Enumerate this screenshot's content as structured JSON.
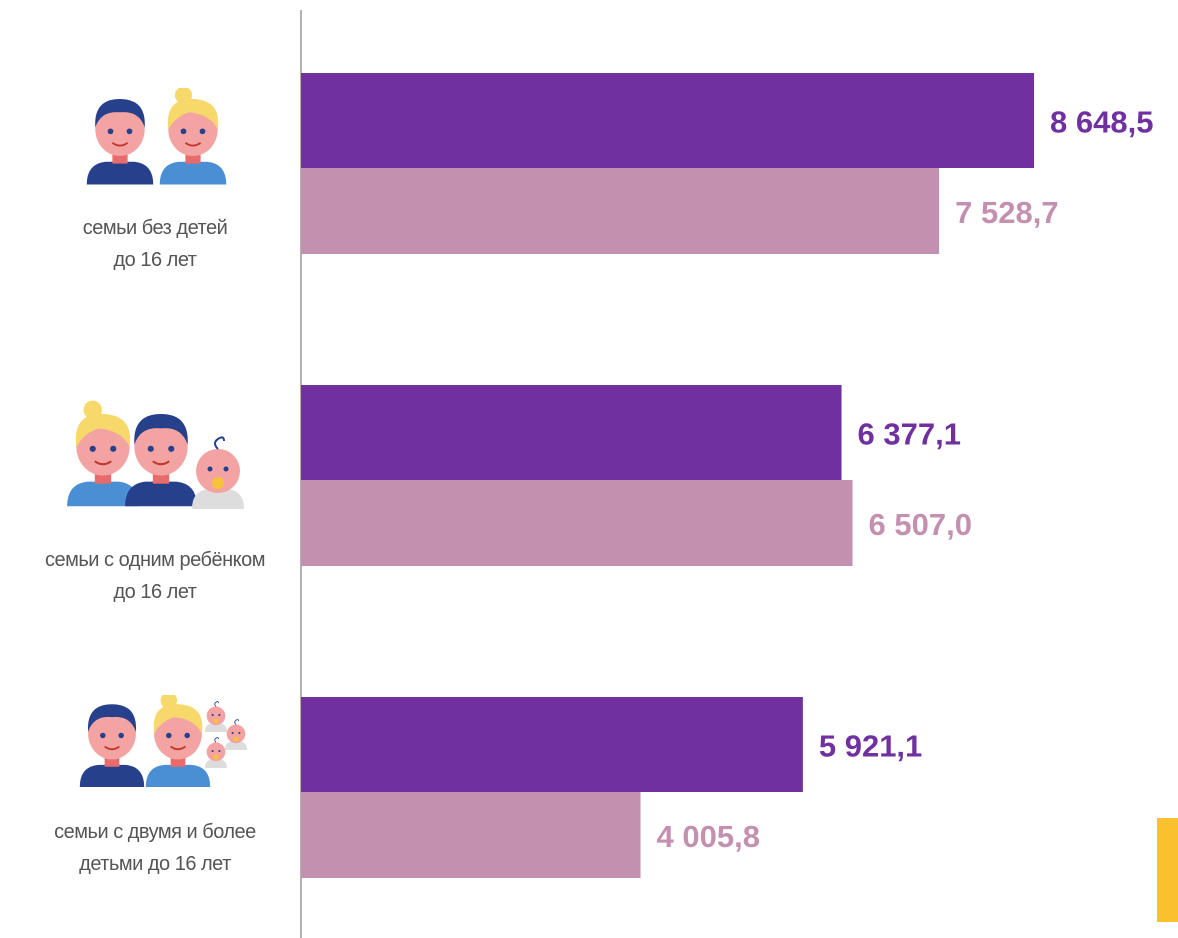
{
  "chart_data": {
    "type": "hbar",
    "categories": [
      "семьи без детей\nдо 16 лет",
      "семьи с одним ребёнком\nдо 16 лет",
      "семьи с двумя и более\nдетьми до 16 лет"
    ],
    "series": [
      {
        "color": "#7030a0",
        "values": [
          8648.5,
          6377.1,
          5921.1
        ],
        "value_labels": [
          "8 648,5",
          "6 377,1",
          "5 921,1"
        ]
      },
      {
        "color": "#c490b0",
        "values": [
          7528.7,
          6507.0,
          4005.8
        ],
        "value_labels": [
          "7 528,7",
          "6 507,0",
          "4 005,8"
        ]
      }
    ],
    "xlim": [
      0,
      10000
    ]
  }
}
